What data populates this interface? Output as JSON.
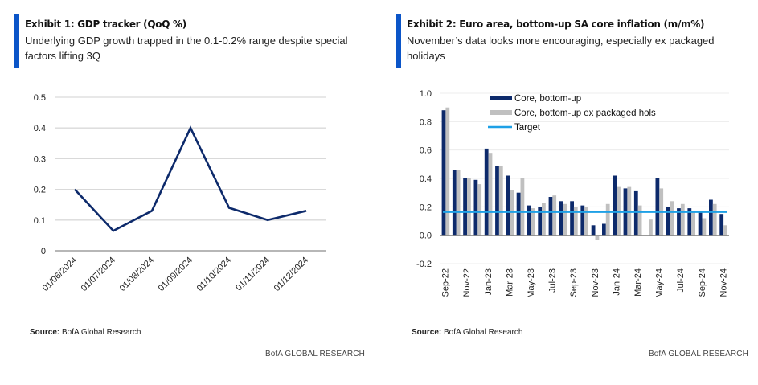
{
  "exhibit1": {
    "title": "Exhibit 1: GDP tracker (QoQ %)",
    "subtitle": "Underlying GDP growth trapped in the 0.1-0.2% range despite special factors lifting 3Q",
    "source_label": "Source:",
    "source_text": "BofA Global Research",
    "brand": "BofA GLOBAL RESEARCH",
    "colors": {
      "line": "#0d2a6b",
      "grid": "#d9d9d9",
      "axis": "#8c8c8c",
      "accent_bar": "#0b55c8"
    }
  },
  "exhibit2": {
    "title": "Exhibit 2: Euro area, bottom-up SA core inflation (m/m%)",
    "subtitle": "November’s data looks more encouraging, especially ex packaged holidays",
    "source_label": "Source:",
    "source_text": "BofA Global Research",
    "brand": "BofA GLOBAL RESEARCH",
    "colors": {
      "core": "#0d2a6b",
      "ex_hols": "#c0c0c0",
      "target": "#1ea0e6",
      "grid": "#ececec",
      "axis": "#8c8c8c",
      "accent_bar": "#0b55c8"
    }
  },
  "chart_data": [
    {
      "type": "line",
      "title": "GDP tracker (QoQ %)",
      "xlabel": "",
      "ylabel": "",
      "x": [
        "01/06/2024",
        "01/07/2024",
        "01/08/2024",
        "01/09/2024",
        "01/10/2024",
        "01/11/2024",
        "01/12/2024"
      ],
      "series": [
        {
          "name": "GDP tracker",
          "values": [
            0.2,
            0.065,
            0.13,
            0.4,
            0.14,
            0.1,
            0.13
          ]
        }
      ],
      "ylim": [
        0,
        0.5
      ],
      "yticks": [
        "0",
        "0.1",
        "0.2",
        "0.3",
        "0.4",
        "0.5"
      ],
      "grid": true,
      "legend": "none"
    },
    {
      "type": "bar",
      "title": "Euro area, bottom-up SA core inflation (m/m%)",
      "xlabel": "",
      "ylabel": "",
      "categories": [
        "Sep-22",
        "Oct-22",
        "Nov-22",
        "Dec-22",
        "Jan-23",
        "Feb-23",
        "Mar-23",
        "Apr-23",
        "May-23",
        "Jun-23",
        "Jul-23",
        "Aug-23",
        "Sep-23",
        "Oct-23",
        "Nov-23",
        "Dec-23",
        "Jan-24",
        "Feb-24",
        "Mar-24",
        "Apr-24",
        "May-24",
        "Jun-24",
        "Jul-24",
        "Aug-24",
        "Sep-24",
        "Oct-24",
        "Nov-24"
      ],
      "xtick_labels": [
        "Sep-22",
        "Nov-22",
        "Jan-23",
        "Mar-23",
        "May-23",
        "Jul-23",
        "Sep-23",
        "Nov-23",
        "Jan-24",
        "Mar-24",
        "May-24",
        "Jul-24",
        "Sep-24",
        "Nov-24"
      ],
      "series": [
        {
          "name": "Core, bottom-up",
          "values": [
            0.88,
            0.46,
            0.4,
            0.39,
            0.61,
            0.49,
            0.42,
            0.3,
            0.21,
            0.2,
            0.27,
            0.24,
            0.24,
            0.21,
            0.07,
            0.08,
            0.42,
            0.33,
            0.31,
            0.0,
            0.4,
            0.2,
            0.19,
            0.19,
            0.17,
            0.25,
            0.15
          ]
        },
        {
          "name": "Core, bottom-up ex packaged hols",
          "values": [
            0.9,
            0.46,
            0.4,
            0.36,
            0.58,
            0.49,
            0.32,
            0.4,
            0.19,
            0.23,
            0.28,
            0.22,
            0.2,
            0.2,
            -0.03,
            0.22,
            0.34,
            0.34,
            0.21,
            0.11,
            0.33,
            0.24,
            0.22,
            0.17,
            0.12,
            0.22,
            0.07
          ]
        }
      ],
      "reference_lines": [
        {
          "name": "Target",
          "value": 0.165
        }
      ],
      "ylim": [
        -0.2,
        1.0
      ],
      "yticks": [
        "-0.2",
        "0.0",
        "0.2",
        "0.4",
        "0.6",
        "0.8",
        "1.0"
      ],
      "grid": true,
      "legend": "top-center"
    }
  ]
}
